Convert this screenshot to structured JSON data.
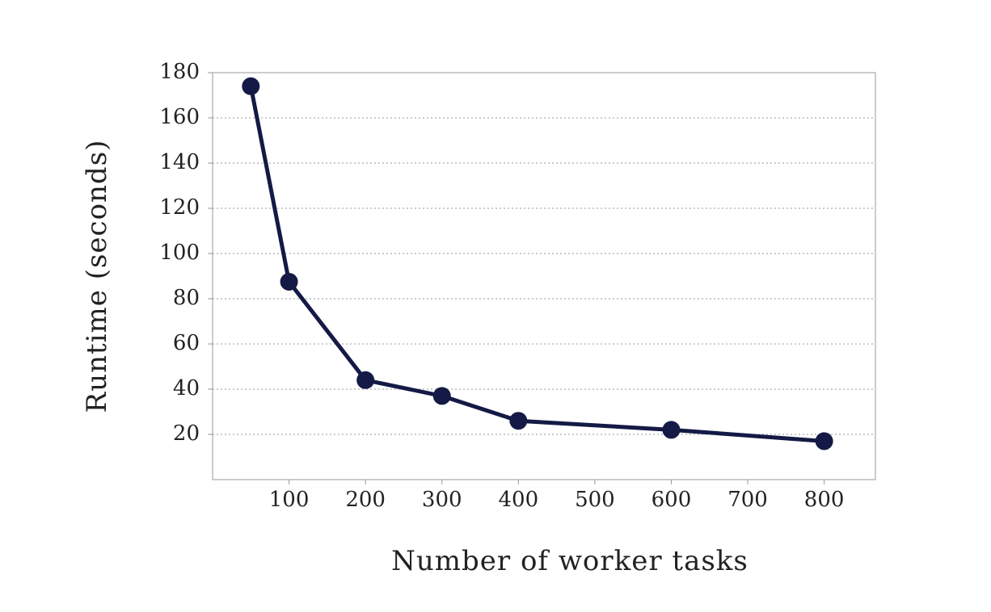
{
  "chart_data": {
    "type": "line",
    "x_label": "Number of worker tasks",
    "y_label": "Runtime (seconds)",
    "x": [
      50,
      100,
      200,
      300,
      400,
      600,
      800
    ],
    "series": [
      {
        "name": "Runtime",
        "color": "#141a45",
        "values": [
          174,
          87.5,
          44,
          37,
          26,
          22,
          17
        ]
      }
    ],
    "xlim": [
      0,
      867
    ],
    "ylim": [
      0,
      180
    ],
    "xticks": [
      100,
      200,
      300,
      400,
      500,
      600,
      700,
      800
    ],
    "yticks": [
      20,
      40,
      60,
      80,
      100,
      120,
      140,
      160,
      180
    ],
    "grid": true
  }
}
